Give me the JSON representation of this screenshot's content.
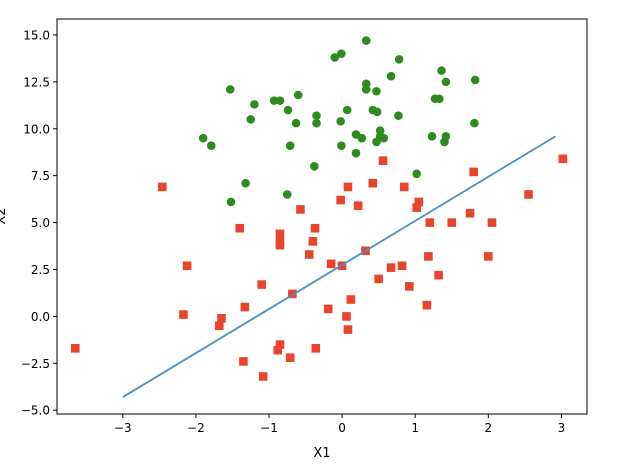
{
  "chart_data": {
    "type": "scatter",
    "title": "",
    "xlabel": "X1",
    "ylabel": "X2",
    "xlim": [
      -3.9,
      3.35
    ],
    "ylim": [
      -5.2,
      15.85
    ],
    "grid": false,
    "x_ticks": [
      {
        "value": -3,
        "label": "−3"
      },
      {
        "value": -2,
        "label": "−2"
      },
      {
        "value": -1,
        "label": "−1"
      },
      {
        "value": 0,
        "label": "0"
      },
      {
        "value": 1,
        "label": "1"
      },
      {
        "value": 2,
        "label": "2"
      },
      {
        "value": 3,
        "label": "3"
      }
    ],
    "y_ticks": [
      {
        "value": -5,
        "label": "−5.0"
      },
      {
        "value": -2.5,
        "label": "−2.5"
      },
      {
        "value": 0,
        "label": "0.0"
      },
      {
        "value": 2.5,
        "label": "2.5"
      },
      {
        "value": 5,
        "label": "5.0"
      },
      {
        "value": 7.5,
        "label": "7.5"
      },
      {
        "value": 10,
        "label": "10.0"
      },
      {
        "value": 12.5,
        "label": "12.5"
      },
      {
        "value": 15,
        "label": "15.0"
      }
    ],
    "series": [
      {
        "marker": "circle",
        "color": "#2e8b1e",
        "points": [
          [
            0.33,
            14.7
          ],
          [
            -0.01,
            14.0
          ],
          [
            -0.1,
            13.8
          ],
          [
            0.78,
            13.7
          ],
          [
            1.36,
            13.1
          ],
          [
            0.67,
            12.8
          ],
          [
            1.82,
            12.6
          ],
          [
            1.42,
            12.5
          ],
          [
            0.33,
            12.4
          ],
          [
            -1.53,
            12.1
          ],
          [
            0.33,
            12.1
          ],
          [
            0.47,
            12.0
          ],
          [
            -0.6,
            11.8
          ],
          [
            1.27,
            11.6
          ],
          [
            1.33,
            11.6
          ],
          [
            -0.93,
            11.5
          ],
          [
            -0.85,
            11.5
          ],
          [
            -1.2,
            11.3
          ],
          [
            -0.74,
            11.0
          ],
          [
            0.07,
            11.0
          ],
          [
            0.42,
            11.0
          ],
          [
            0.48,
            10.9
          ],
          [
            -0.35,
            10.7
          ],
          [
            0.77,
            10.7
          ],
          [
            -1.25,
            10.5
          ],
          [
            -0.02,
            10.4
          ],
          [
            -0.63,
            10.3
          ],
          [
            -0.35,
            10.3
          ],
          [
            1.81,
            10.3
          ],
          [
            0.52,
            9.9
          ],
          [
            0.19,
            9.7
          ],
          [
            0.52,
            9.6
          ],
          [
            -1.9,
            9.5
          ],
          [
            0.27,
            9.5
          ],
          [
            0.57,
            9.5
          ],
          [
            1.23,
            9.6
          ],
          [
            1.42,
            9.6
          ],
          [
            1.4,
            9.3
          ],
          [
            0.47,
            9.3
          ],
          [
            -1.79,
            9.1
          ],
          [
            -0.71,
            9.1
          ],
          [
            -0.01,
            9.1
          ],
          [
            0.19,
            8.7
          ],
          [
            -0.38,
            8.0
          ],
          [
            1.02,
            7.6
          ],
          [
            -1.32,
            7.1
          ],
          [
            -0.75,
            6.5
          ],
          [
            -1.52,
            6.1
          ]
        ]
      },
      {
        "marker": "square",
        "color": "#e8452c",
        "points": [
          [
            -2.46,
            6.9
          ],
          [
            0.56,
            8.3
          ],
          [
            1.8,
            7.7
          ],
          [
            0.42,
            7.1
          ],
          [
            0.08,
            6.9
          ],
          [
            0.85,
            6.9
          ],
          [
            -0.02,
            6.2
          ],
          [
            3.02,
            8.4
          ],
          [
            2.55,
            6.5
          ],
          [
            1.05,
            6.1
          ],
          [
            0.22,
            5.9
          ],
          [
            1.02,
            5.8
          ],
          [
            -0.57,
            5.7
          ],
          [
            1.75,
            5.5
          ],
          [
            1.5,
            5.0
          ],
          [
            2.05,
            5.0
          ],
          [
            1.2,
            5.0
          ],
          [
            -1.4,
            4.7
          ],
          [
            -0.37,
            4.7
          ],
          [
            -0.85,
            4.4
          ],
          [
            -0.85,
            4.0
          ],
          [
            -0.4,
            4.0
          ],
          [
            -0.85,
            3.8
          ],
          [
            0.32,
            3.5
          ],
          [
            -0.45,
            3.3
          ],
          [
            1.18,
            3.2
          ],
          [
            2.0,
            3.2
          ],
          [
            -0.15,
            2.8
          ],
          [
            0.0,
            2.7
          ],
          [
            -2.12,
            2.7
          ],
          [
            0.82,
            2.7
          ],
          [
            0.67,
            2.6
          ],
          [
            1.32,
            2.2
          ],
          [
            0.5,
            2.0
          ],
          [
            -1.1,
            1.7
          ],
          [
            0.92,
            1.6
          ],
          [
            -0.68,
            1.2
          ],
          [
            0.12,
            0.9
          ],
          [
            1.16,
            0.6
          ],
          [
            -1.33,
            0.5
          ],
          [
            -0.19,
            0.4
          ],
          [
            -2.17,
            0.1
          ],
          [
            0.06,
            0.0
          ],
          [
            -1.65,
            -0.1
          ],
          [
            -1.68,
            -0.5
          ],
          [
            0.08,
            -0.7
          ],
          [
            -3.65,
            -1.7
          ],
          [
            -0.85,
            -1.5
          ],
          [
            -0.36,
            -1.7
          ],
          [
            -0.88,
            -1.8
          ],
          [
            -0.71,
            -2.2
          ],
          [
            -1.35,
            -2.4
          ],
          [
            -1.08,
            -3.2
          ]
        ]
      }
    ],
    "lines": [
      {
        "color": "#4a90c0",
        "points": [
          [
            -3.0,
            -4.3
          ],
          [
            2.92,
            9.6
          ]
        ]
      }
    ]
  }
}
